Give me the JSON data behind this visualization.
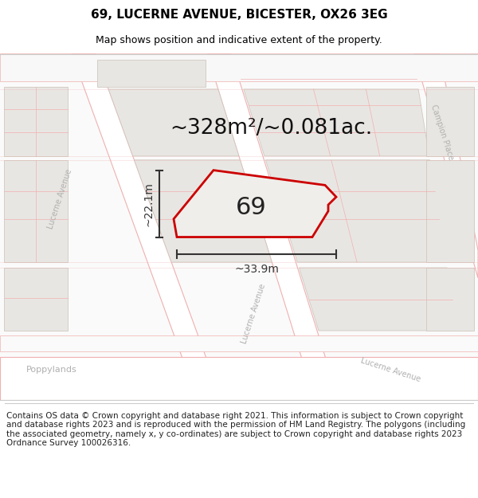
{
  "title": "69, LUCERNE AVENUE, BICESTER, OX26 3EG",
  "subtitle": "Map shows position and indicative extent of the property.",
  "footer": "Contains OS data © Crown copyright and database right 2021. This information is subject to Crown copyright and database rights 2023 and is reproduced with the permission of HM Land Registry. The polygons (including the associated geometry, namely x, y co-ordinates) are subject to Crown copyright and database rights 2023 Ordnance Survey 100026316.",
  "area_label": "~328m²/~0.081ac.",
  "property_number": "69",
  "width_label": "~33.9m",
  "height_label": "~22.1m",
  "map_bg": "#ffffff",
  "block_fill": "#e8e6e2",
  "block_edge": "#d0c8c0",
  "road_line": "#f0b0b0",
  "property_fill": "#f0eeea",
  "property_stroke": "#cc0000",
  "dim_color": "#333333",
  "title_color": "#000000",
  "footer_color": "#222222",
  "label_color": "#aaaaaa",
  "title_fontsize": 11,
  "subtitle_fontsize": 9,
  "footer_fontsize": 7.5,
  "area_label_fontsize": 19,
  "property_number_fontsize": 22,
  "dim_label_fontsize": 10,
  "road_label_fontsize": 7,
  "road_label_color": "#b0b0b0"
}
